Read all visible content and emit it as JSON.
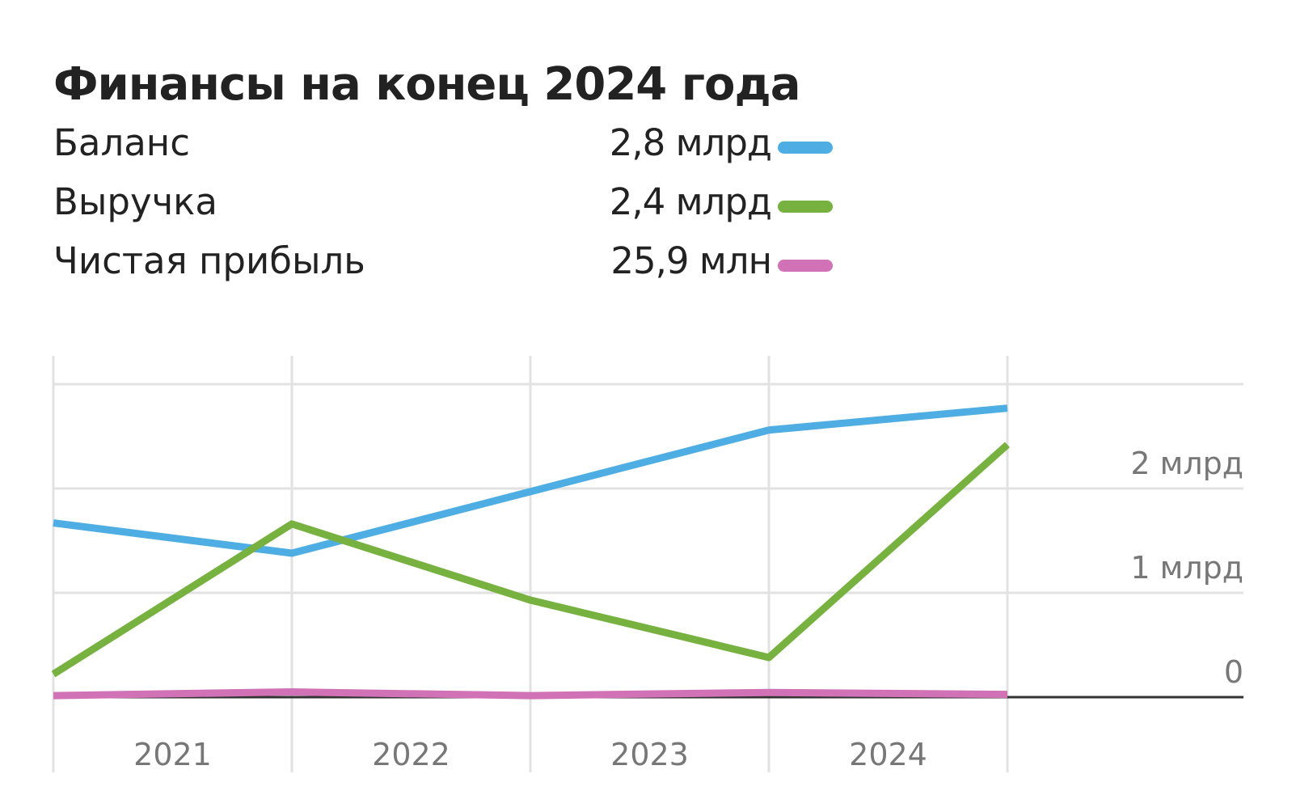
{
  "title": "Финансы на конец 2024 года",
  "legend": [
    {
      "name": "Баланс",
      "value": "2,8 млрд",
      "color": "#4EAEE3"
    },
    {
      "name": "Выручка",
      "value": "2,4 млрд",
      "color": "#77B140"
    },
    {
      "name": "Чистая прибыль",
      "value": "25,9 млн",
      "color": "#D072B5"
    }
  ],
  "chart_data": {
    "type": "line",
    "title": "Финансы на конец 2024 года",
    "categories": [
      "2021",
      "2022",
      "2023",
      "2024"
    ],
    "x": [
      2020.5,
      2021.5,
      2022.5,
      2023.5,
      2024.5
    ],
    "y_axis": {
      "position": "right",
      "ticks": [
        {
          "value": 0,
          "label": "0"
        },
        {
          "value": 1,
          "label": "1 млрд"
        },
        {
          "value": 2,
          "label": "2 млрд"
        }
      ],
      "unit": "млрд",
      "ylim": [
        0,
        3
      ]
    },
    "grid": true,
    "series": [
      {
        "name": "Баланс",
        "color": "#4EAEE3",
        "values": [
          1.67,
          1.38,
          1.97,
          2.56,
          2.77
        ]
      },
      {
        "name": "Выручка",
        "color": "#77B140",
        "values": [
          0.22,
          1.66,
          0.93,
          0.38,
          2.42
        ]
      },
      {
        "name": "Чистая прибыль",
        "color": "#D072B5",
        "values": [
          0.015,
          0.05,
          0.015,
          0.045,
          0.026
        ]
      }
    ]
  }
}
